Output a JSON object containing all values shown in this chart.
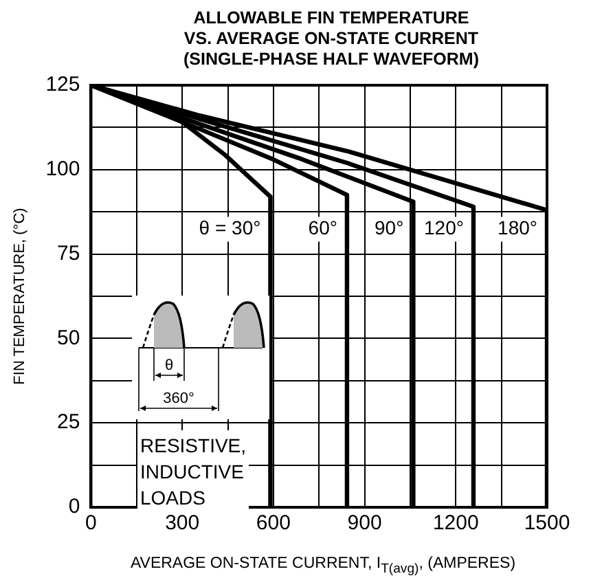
{
  "chart_data": {
    "type": "line",
    "title": "ALLOWABLE FIN TEMPERATURE\nVS. AVERAGE ON-STATE CURRENT\n(SINGLE-PHASE HALF WAVEFORM)",
    "xlabel": "AVERAGE ON-STATE CURRENT, I$_{T(avg)}$, (AMPERES)",
    "ylabel": "FIN TEMPERATURE, (°C)",
    "series": [
      {
        "name": "θ = 30°",
        "color": "#000000",
        "x": [
          0,
          229,
          439,
          590,
          590
        ],
        "values": [
          125,
          119,
          104.5,
          92,
          0
        ]
      },
      {
        "name": "60°",
        "color": "#000000",
        "x": [
          0,
          358,
          600,
          842,
          842
        ],
        "values": [
          125,
          112,
          103,
          92.5,
          0
        ]
      },
      {
        "name": "90°",
        "color": "#000000",
        "x": [
          0,
          358,
          681,
          1060,
          1060
        ],
        "values": [
          125,
          113.5,
          103.5,
          90.5,
          0
        ]
      },
      {
        "name": "120°",
        "color": "#000000",
        "x": [
          0,
          358,
          842,
          1258,
          1258
        ],
        "values": [
          125,
          115,
          102,
          89,
          0
        ]
      },
      {
        "name": "180°",
        "color": "#000000",
        "x": [
          0,
          358,
          842,
          1500,
          1500
        ],
        "values": [
          125,
          116,
          105.5,
          88,
          0
        ]
      }
    ],
    "xlim": [
      0,
      1500
    ],
    "xticks": [
      0,
      {
        "value": 150,
        "label": null
      },
      300,
      {
        "value": 450,
        "label": null
      },
      600,
      {
        "value": 750,
        "label": null
      },
      900,
      {
        "value": 1050,
        "label": null
      },
      1200,
      {
        "value": 1350,
        "label": null
      },
      1500
    ],
    "ylim": [
      0,
      125
    ],
    "yticks": [
      0,
      {
        "value": 12.5,
        "label": null
      },
      25,
      {
        "value": 37.5,
        "label": null
      },
      50,
      {
        "value": 62.5,
        "label": null
      },
      75,
      {
        "value": 87.5,
        "label": null
      },
      100,
      {
        "value": 112.5,
        "label": null
      },
      125
    ],
    "annotations": [
      "RESISTIVE,\nINDUCTIVE\nLOADS",
      "θ",
      "360°"
    ],
    "grid": true,
    "legend": false,
    "marker": "none",
    "line_style": "solid"
  }
}
